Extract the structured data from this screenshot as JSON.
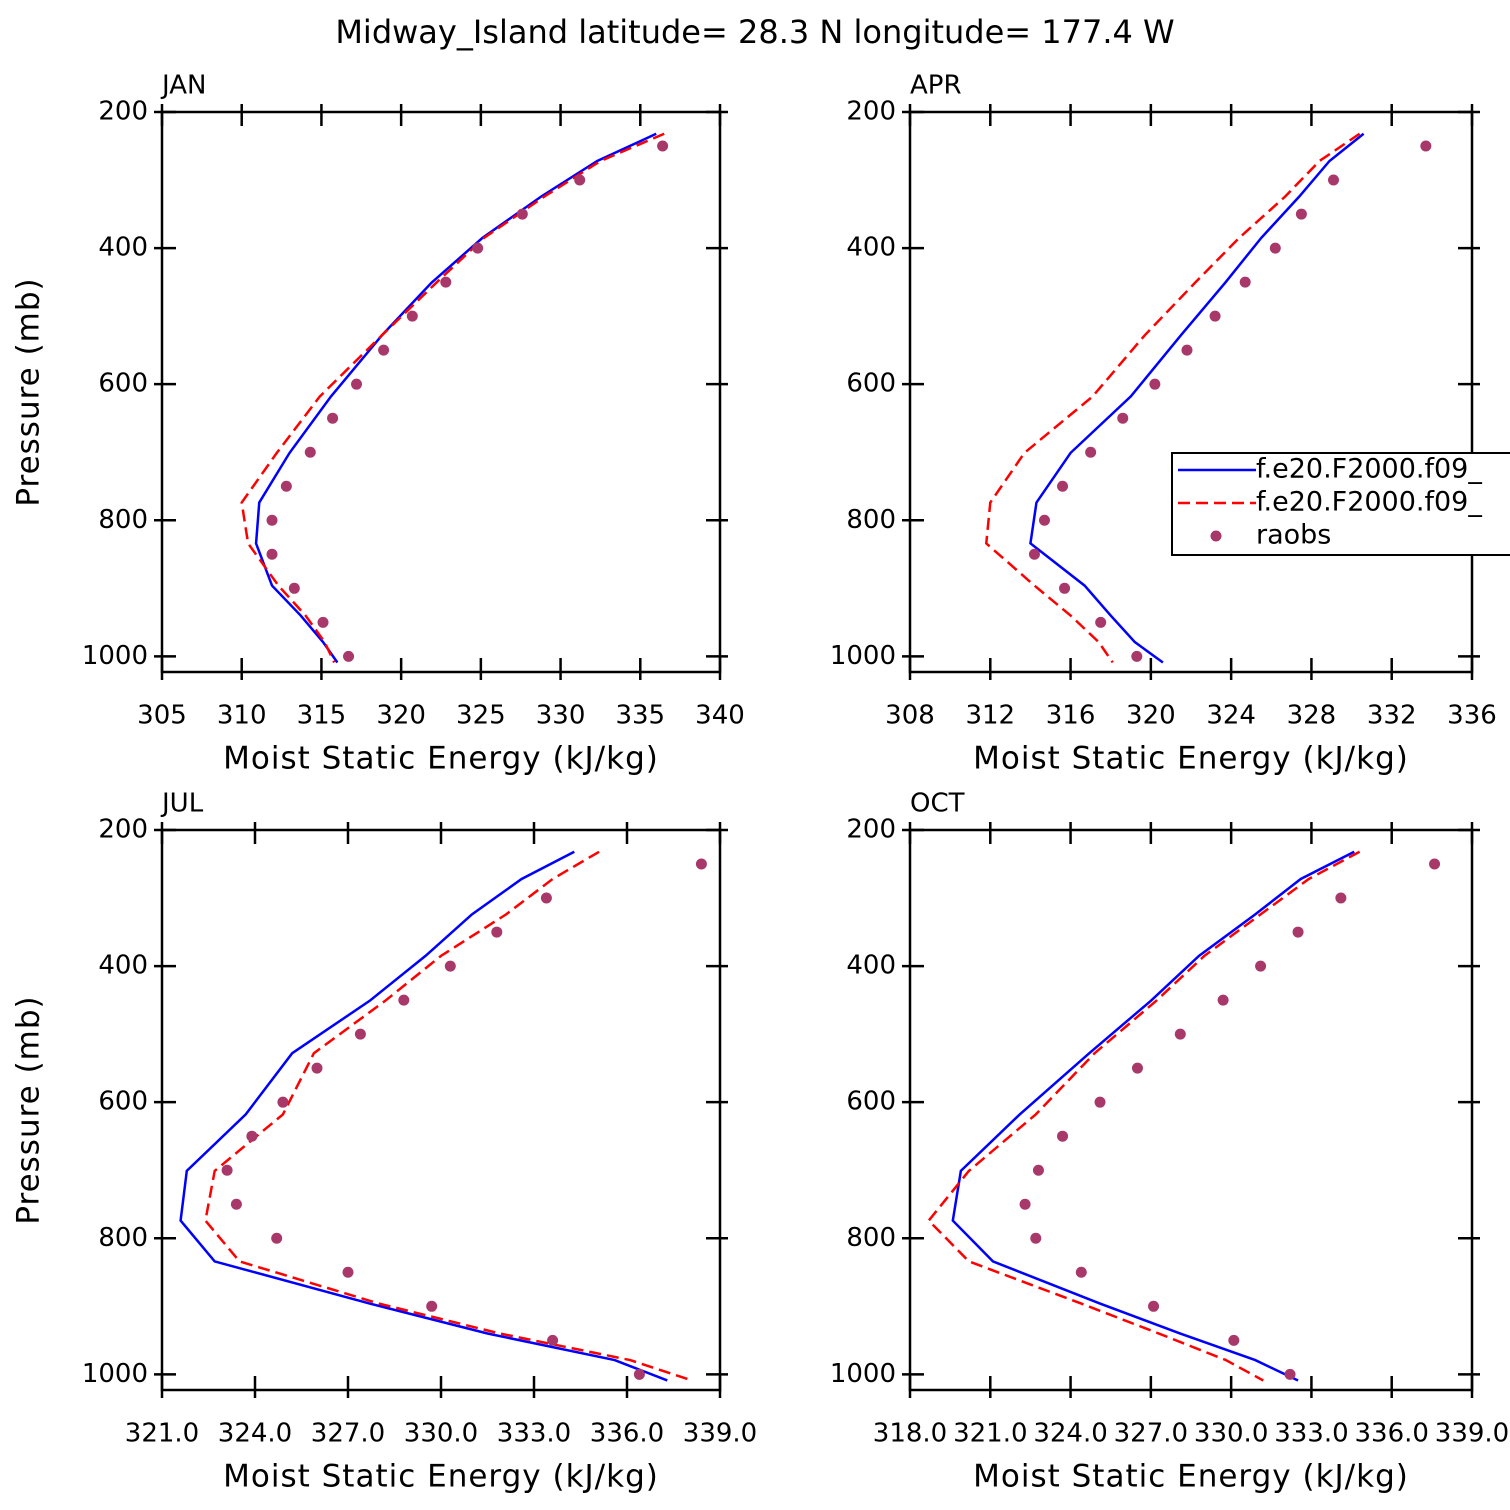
{
  "title": "Midway_Island  latitude= 28.3 N longitude= 177.4 W",
  "chart_data": [
    {
      "type": "line",
      "title": "JAN",
      "xlabel": "Moist Static Energy (kJ/kg)",
      "ylabel": "Pressure (mb)",
      "xlim": [
        305,
        340
      ],
      "xticks": [
        305,
        310,
        315,
        320,
        325,
        330,
        335,
        340
      ],
      "ylim": [
        1023,
        200
      ],
      "yticks": [
        200,
        400,
        600,
        800,
        1000
      ],
      "series": [
        {
          "name": "f.e20.F2000.f09_",
          "color": "#0000ff",
          "style": "solid",
          "y": [
            232,
            272,
            324,
            385,
            451,
            528,
            618,
            701,
            774,
            834,
            896,
            940,
            979,
            1009
          ],
          "values": [
            336.0,
            332.3,
            328.8,
            325.1,
            321.9,
            318.8,
            315.6,
            313.0,
            311.1,
            310.9,
            311.9,
            313.7,
            315.1,
            316.0
          ]
        },
        {
          "name": "f.e20.F2000.f09_",
          "color": "#ff0000",
          "style": "dashed",
          "y": [
            232,
            272,
            324,
            385,
            451,
            528,
            618,
            701,
            774,
            834,
            896,
            940,
            979,
            1009
          ],
          "values": [
            336.5,
            332.5,
            329.0,
            325.2,
            322.2,
            318.8,
            314.9,
            312.2,
            310.0,
            310.4,
            312.3,
            314.0,
            315.2,
            315.8
          ]
        },
        {
          "name": "raobs",
          "color": "#a8386a",
          "style": "markers",
          "y": [
            250,
            300,
            350,
            400,
            450,
            500,
            550,
            600,
            650,
            700,
            750,
            800,
            850,
            900,
            950,
            1000
          ],
          "values": [
            336.4,
            331.2,
            327.6,
            324.8,
            322.8,
            320.7,
            318.9,
            317.2,
            315.7,
            314.3,
            312.8,
            311.9,
            311.9,
            313.3,
            315.1,
            316.7
          ]
        }
      ]
    },
    {
      "type": "line",
      "title": "APR",
      "xlabel": "Moist Static Energy (kJ/kg)",
      "legend": "right",
      "xlim": [
        308,
        336
      ],
      "xticks": [
        308,
        312,
        316,
        320,
        324,
        328,
        332,
        336
      ],
      "ylim": [
        1023,
        200
      ],
      "yticks": [
        200,
        400,
        600,
        800,
        1000
      ],
      "series": [
        {
          "name": "f.e20.F2000.f09_",
          "color": "#0000ff",
          "style": "solid",
          "y": [
            232,
            272,
            324,
            385,
            451,
            528,
            618,
            701,
            774,
            834,
            896,
            940,
            979,
            1009
          ],
          "values": [
            330.6,
            328.9,
            327.4,
            325.5,
            323.7,
            321.5,
            319.0,
            316.0,
            314.3,
            314.0,
            316.7,
            318.0,
            319.2,
            320.6
          ]
        },
        {
          "name": "f.e20.F2000.f09_",
          "color": "#ff0000",
          "style": "dashed",
          "y": [
            232,
            272,
            324,
            385,
            451,
            528,
            618,
            701,
            774,
            834,
            896,
            940,
            979,
            1009
          ],
          "values": [
            330.4,
            328.4,
            326.7,
            324.4,
            322.2,
            319.7,
            317.1,
            313.7,
            312.0,
            311.8,
            314.2,
            316.0,
            317.4,
            318.1
          ]
        },
        {
          "name": "raobs",
          "color": "#a8386a",
          "style": "markers",
          "y": [
            250,
            300,
            350,
            400,
            450,
            500,
            550,
            600,
            650,
            700,
            750,
            800,
            850,
            900,
            950,
            1000
          ],
          "values": [
            333.7,
            329.1,
            327.5,
            326.2,
            324.7,
            323.2,
            321.8,
            320.2,
            318.6,
            317.0,
            315.6,
            314.7,
            314.2,
            315.7,
            317.5,
            319.3
          ]
        }
      ]
    },
    {
      "type": "line",
      "title": "JUL",
      "xlabel": "Moist Static Energy (kJ/kg)",
      "ylabel": "Pressure (mb)",
      "xlim": [
        321,
        339
      ],
      "xticks": [
        {
          "value": 321,
          "label": "321.0"
        },
        {
          "value": 324,
          "label": "324.0"
        },
        {
          "value": 327,
          "label": "327.0"
        },
        {
          "value": 330,
          "label": "330.0"
        },
        {
          "value": 333,
          "label": "333.0"
        },
        {
          "value": 336,
          "label": "336.0"
        },
        {
          "value": 339,
          "label": "339.0"
        }
      ],
      "ylim": [
        1023,
        200
      ],
      "yticks": [
        200,
        400,
        600,
        800,
        1000
      ],
      "series": [
        {
          "name": "f.e20.F2000.f09_",
          "color": "#0000ff",
          "style": "solid",
          "y": [
            232,
            272,
            324,
            385,
            451,
            528,
            618,
            701,
            774,
            834,
            896,
            940,
            979,
            1009
          ],
          "values": [
            334.3,
            332.6,
            331.0,
            329.5,
            327.7,
            325.2,
            323.7,
            321.8,
            321.6,
            322.7,
            327.7,
            331.5,
            335.6,
            337.3
          ]
        },
        {
          "name": "f.e20.F2000.f09_",
          "color": "#ff0000",
          "style": "dashed",
          "y": [
            232,
            272,
            324,
            385,
            451,
            528,
            618,
            701,
            774,
            834,
            896,
            940,
            979,
            1009
          ],
          "values": [
            335.1,
            333.6,
            332.1,
            330.0,
            328.2,
            325.9,
            324.9,
            322.7,
            322.4,
            323.5,
            328.0,
            331.9,
            336.1,
            338.1
          ]
        },
        {
          "name": "raobs",
          "color": "#a8386a",
          "style": "markers",
          "y": [
            250,
            300,
            350,
            400,
            450,
            500,
            550,
            600,
            650,
            700,
            750,
            800,
            850,
            900,
            950,
            1000
          ],
          "values": [
            338.4,
            333.4,
            331.8,
            330.3,
            328.8,
            327.4,
            326.0,
            324.9,
            323.9,
            323.1,
            323.4,
            324.7,
            327.0,
            329.7,
            333.6,
            336.4
          ]
        }
      ]
    },
    {
      "type": "line",
      "title": "OCT",
      "xlabel": "Moist Static Energy (kJ/kg)",
      "xlim": [
        318,
        339
      ],
      "xticks": [
        {
          "value": 318,
          "label": "318.0"
        },
        {
          "value": 321,
          "label": "321.0"
        },
        {
          "value": 324,
          "label": "324.0"
        },
        {
          "value": 327,
          "label": "327.0"
        },
        {
          "value": 330,
          "label": "330.0"
        },
        {
          "value": 333,
          "label": "333.0"
        },
        {
          "value": 336,
          "label": "336.0"
        },
        {
          "value": 339,
          "label": "339.0"
        }
      ],
      "ylim": [
        1023,
        200
      ],
      "yticks": [
        200,
        400,
        600,
        800,
        1000
      ],
      "series": [
        {
          "name": "f.e20.F2000.f09_",
          "color": "#0000ff",
          "style": "solid",
          "y": [
            232,
            272,
            324,
            385,
            451,
            528,
            618,
            701,
            774,
            834,
            896,
            940,
            979,
            1009
          ],
          "values": [
            334.6,
            332.6,
            330.9,
            328.8,
            327.0,
            324.7,
            322.1,
            319.9,
            319.6,
            321.1,
            325.1,
            328.1,
            330.9,
            332.5
          ]
        },
        {
          "name": "f.e20.F2000.f09_",
          "color": "#ff0000",
          "style": "dashed",
          "y": [
            232,
            272,
            324,
            385,
            451,
            528,
            618,
            701,
            774,
            834,
            896,
            940,
            979,
            1009
          ],
          "values": [
            334.8,
            332.9,
            331.1,
            329.0,
            327.2,
            324.9,
            322.7,
            320.2,
            318.7,
            320.2,
            324.4,
            327.3,
            329.8,
            331.2
          ]
        },
        {
          "name": "raobs",
          "color": "#a8386a",
          "style": "markers",
          "y": [
            250,
            300,
            350,
            400,
            450,
            500,
            550,
            600,
            650,
            700,
            750,
            800,
            850,
            900,
            950,
            1000
          ],
          "values": [
            337.6,
            334.1,
            332.5,
            331.1,
            329.7,
            328.1,
            326.5,
            325.1,
            323.7,
            322.8,
            322.3,
            322.7,
            324.4,
            327.1,
            330.1,
            332.2
          ]
        }
      ]
    }
  ]
}
